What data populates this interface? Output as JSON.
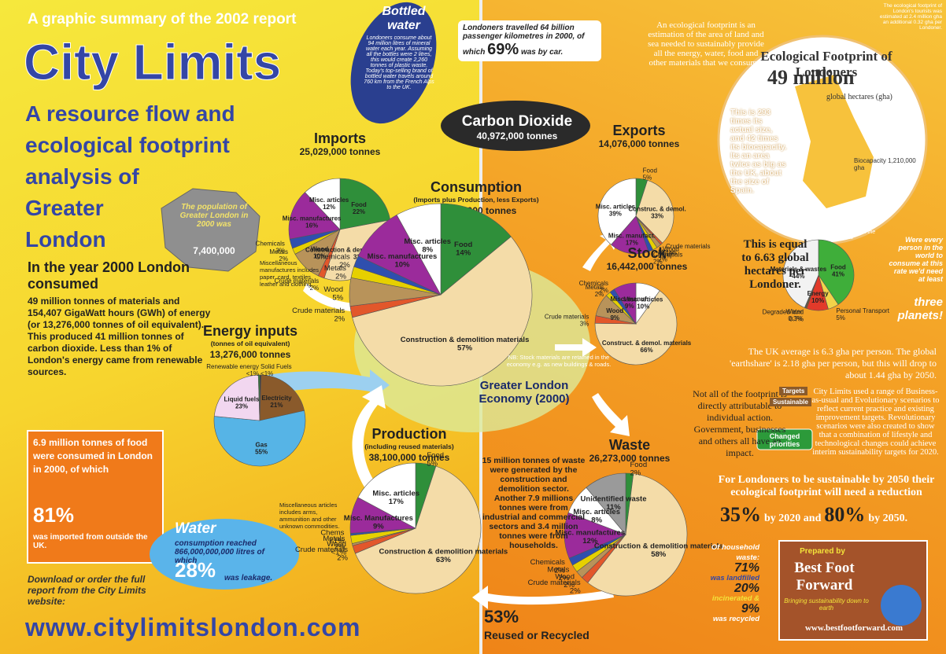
{
  "top_line": "A graphic summary of the 2002 report",
  "title": "City Limits",
  "heading": [
    "A resource flow and",
    "ecological footprint",
    "analysis of",
    "Greater",
    "London"
  ],
  "intro_lead": "In the year 2000 London consumed",
  "intro_body": "49 million tonnes of materials and 154,407 GigaWatt hours (GWh) of energy (or 13,276,000 tonnes of oil equivalent). This produced 41 million tonnes of carbon dioxide. Less than 1% of London's energy came from renewable sources.",
  "population_note": "The population of Greater London in 2000 was",
  "population_value": "7,400,000",
  "misc_note": "Miscellaneous manufactures includes paper, card, textiles, leather and clothing.",
  "bottled_water_title": "Bottled water",
  "bottled_water_body": "Londoners consume about 94 million litres of mineral water each year. Assuming all the bottles were 2 litres, this would create 2,260 tonnes of plastic waste. Today's top-selling brand of bottled water travels around 760 km from the French Alps to the UK.",
  "food_box": "6.9 million tonnes of food were consumed in London in 2000, of which",
  "food_percent": "81%",
  "food_box_end": "was imported from outside the UK.",
  "water_title": "Water",
  "water_body": "consumption reached 866,000,000,000 litres of which",
  "water_percent": "28%",
  "water_end": "was leakage.",
  "download": "Download or order the full report from the City Limits website:",
  "url": "www.citylimitslondon.com",
  "misc_articles_note": "Miscellaneous articles includes arms, ammunition and other unknown commodities.",
  "travel": "Londoners travelled 64 billion passenger kilometres in 2000, of which",
  "travel_percent": "69%",
  "travel_end": "was by car.",
  "co2_title": "Carbon Dioxide",
  "co2_value": "40,972,000 tonnes",
  "economy": "Greater London Economy (2000)",
  "stock_note": "NB: Stock materials are retained in the economy e.g. as new buildings & roads.",
  "footprint_definition": "An ecological footprint is an estimation of the area of land and sea needed to sustainably provide all the energy, water, food and other materials that we consume.",
  "footprint_title": "Ecological Footprint of Londoners",
  "footprint_value": "49 million",
  "footprint_unit": "global hectares (gha)",
  "footprint_size": "This is 293 times its actual size, and 42 times its biocapacity. Its an area twice as big as the UK, about the size of Spain.",
  "biocapacity": "Biocapacity 1,210,000 gha",
  "tourists_note": "The ecological footprint of London's tourists was estimated at 2.4 million gha an additional 0.32 gha per Londoner.",
  "pie_caption": "The pie chart below shows the components",
  "per_person": "This is equal to 6.63 global hectares per Londoner.",
  "planets": "Were every person in the world to consume at this rate we'd need at least",
  "planets_end": "three planets!",
  "averages": "The UK average is 6.3 gha per person. The global 'earthshare' is 2.18 gha per person, but this will drop to about 1.44 gha by 2050.",
  "not_all": "Not all of the footprint is directly attributable to individual action. Government, businesses and others all have an impact.",
  "sign_targets": "Targets",
  "sign_sustainable": "Sustainable",
  "sign_changed": "Changed priorities",
  "scenarios": "City Limits used a range of Business-as-usual and Evolutionary scenarios to reflect current practice and existing improvement targets. Revolutionary scenarios were also created to show that a combination of lifestyle and technological changes could achieve interim sustainability targets for 2020.",
  "sustainable_2050": "For Londoners to be sustainable by 2050 their ecological footprint will need a reduction",
  "reduction_2020": "35%",
  "reduction_2020_text": "by 2020 and",
  "reduction_2050": "80%",
  "reduction_2050_text": "by 2050.",
  "waste_text": "15 million tonnes of waste were generated by the construction and demolition sector. Another 7.9 millions tonnes were from industrial and commercial sectors and 3.4 million tonnes were from households.",
  "household_title": "Of household waste:",
  "household_landfill": "71%",
  "household_landfill_text": "was landfilled",
  "household_incinerated": "20%",
  "household_incinerated_text": "incinerated &",
  "household_recycled": "9%",
  "household_recycled_text": "was recycled",
  "reused_percent": "53%",
  "reused_text": "Reused or Recycled",
  "prepared_by": "Prepared by",
  "bff_name": "Best Foot Forward",
  "bff_tagline": "Bringing sustainability down to earth",
  "bff_url": "www.bestfootforward.com",
  "pies": [
    {
      "title": "Imports",
      "total": "25,029,000 tonnes",
      "labels": [
        "Food",
        "Construction & demolition materials",
        "Crude materials",
        "Wood",
        "Metals",
        "Chemicals",
        "Misc. manufactures",
        "Misc. articles"
      ],
      "values": [
        22,
        33,
        2,
        10,
        2,
        3,
        16,
        12
      ],
      "value_labels": [
        "22%",
        "33%",
        "2%",
        "10%",
        "2%",
        "3%",
        "16%",
        "12%"
      ],
      "colors": [
        "#2f8f3a",
        "#f4dca8",
        "#e2572b",
        "#b8935a",
        "#e6d000",
        "#2f4fae",
        "#9b2b9b",
        "#ffffff"
      ]
    },
    {
      "title": "Consumption",
      "subtitle": "(Imports plus Production, less Exports)",
      "total": "49,052,000 tonnes",
      "labels": [
        "Food",
        "Construction & demolition materials",
        "Crude materials",
        "Wood",
        "Metals",
        "Chemicals",
        "Misc. manufactures",
        "Misc. articles"
      ],
      "values": [
        14,
        57,
        2,
        5,
        2,
        2,
        10,
        8
      ],
      "value_labels": [
        "14%",
        "57%",
        "2%",
        "5%",
        "2%",
        "2%",
        "10%",
        "8%"
      ],
      "colors": [
        "#2f8f3a",
        "#f4dca8",
        "#e2572b",
        "#b8935a",
        "#e6d000",
        "#2f4fae",
        "#9b2b9b",
        "#ffffff"
      ]
    },
    {
      "title": "Exports",
      "total": "14,076,000 tonnes",
      "labels": [
        "Food",
        "Construc. & demol.",
        "Crude materials",
        "Wood",
        "Metals",
        "Chemicals",
        "Misc. manufact.",
        "Misc. articles"
      ],
      "values": [
        5,
        33,
        1,
        2,
        2,
        2,
        17,
        39
      ],
      "value_labels": [
        "5%",
        "33%",
        "1%",
        "2%",
        "2%",
        "2%",
        "17%",
        "39%"
      ],
      "colors": [
        "#2f8f3a",
        "#f4dca8",
        "#e2572b",
        "#b8935a",
        "#e6d000",
        "#2f4fae",
        "#9b2b9b",
        "#ffffff"
      ]
    },
    {
      "title": "Stock",
      "total": "16,442,000 tonnes",
      "labels": [
        "Misc. articles",
        "Construct. & demol. materials",
        "Crude materials",
        "Wood",
        "Metals",
        "Chemicals",
        "Misc. manuf."
      ],
      "values": [
        10,
        66,
        3,
        9,
        2,
        2,
        9
      ],
      "value_labels": [
        "10%",
        "66%",
        "3%",
        "9%",
        "2%",
        "2%",
        "9%"
      ],
      "colors": [
        "#ffffff",
        "#f4dca8",
        "#e2572b",
        "#b8935a",
        "#e6d000",
        "#2f4fae",
        "#9b2b9b"
      ]
    },
    {
      "title": "Production",
      "subtitle": "(including reused materials)",
      "total": "38,100,000 tonnes",
      "labels": [
        "Food",
        "Construction & demolition materials",
        "Crude materials",
        "Wood",
        "Metals",
        "Chems",
        "Misc. Manufactures",
        "Misc. articles"
      ],
      "values": [
        5,
        63,
        2,
        0.5,
        2,
        0.5,
        9,
        17
      ],
      "value_labels": [
        "5%",
        "63%",
        "2%",
        "<1%",
        "2%",
        "<1%",
        "9%",
        "17%"
      ],
      "colors": [
        "#2f8f3a",
        "#f4dca8",
        "#e2572b",
        "#b8935a",
        "#e6d000",
        "#2f4fae",
        "#9b2b9b",
        "#ffffff"
      ]
    },
    {
      "title": "Waste",
      "total": "26,273,000 tonnes",
      "labels": [
        "Food",
        "Construction & demolition materials",
        "Crude materials",
        "Wood",
        "Metals",
        "Chemicals",
        "Misc. manufactures",
        "Misc. articles",
        "Unidentified waste"
      ],
      "values": [
        2,
        58,
        2,
        2,
        2,
        2,
        12,
        8,
        11
      ],
      "value_labels": [
        "2%",
        "58%",
        "2%",
        "2%",
        "2%",
        "2%",
        "12%",
        "8%",
        "11%"
      ],
      "colors": [
        "#2f8f3a",
        "#f4dca8",
        "#e2572b",
        "#b8935a",
        "#e6d000",
        "#2f4fae",
        "#9b2b9b",
        "#ffffff",
        "#9a9a9a"
      ]
    },
    {
      "title": "Energy inputs",
      "subtitle": "(tonnes of oil equivalent)",
      "total": "13,276,000 tonnes",
      "labels": [
        "Solid Fuels",
        "Electricity",
        "Gas",
        "Liquid fuels",
        "Renewable energy"
      ],
      "values": [
        0.5,
        21,
        55,
        23,
        0.5
      ],
      "value_labels": [
        "<1%",
        "21%",
        "55%",
        "23%",
        "<1%"
      ],
      "colors": [
        "#333333",
        "#8a5a2b",
        "#56b4e6",
        "#f2d7f0",
        "#2f8f3a"
      ]
    },
    {
      "labels": [
        "Food",
        "Personal Transport",
        "Energy",
        "Degraded land",
        "Water",
        "Materials & wastes"
      ],
      "values": [
        41,
        5,
        10,
        0.7,
        0.3,
        44
      ],
      "value_labels": [
        "41%",
        "5%",
        "10%",
        "0.7%",
        "0.3%",
        "44%"
      ],
      "colors": [
        "#3fae3a",
        "#f2d34a",
        "#e23a2a",
        "#7a5a2a",
        "#2f6fd0",
        "#f2f2f2"
      ]
    }
  ]
}
